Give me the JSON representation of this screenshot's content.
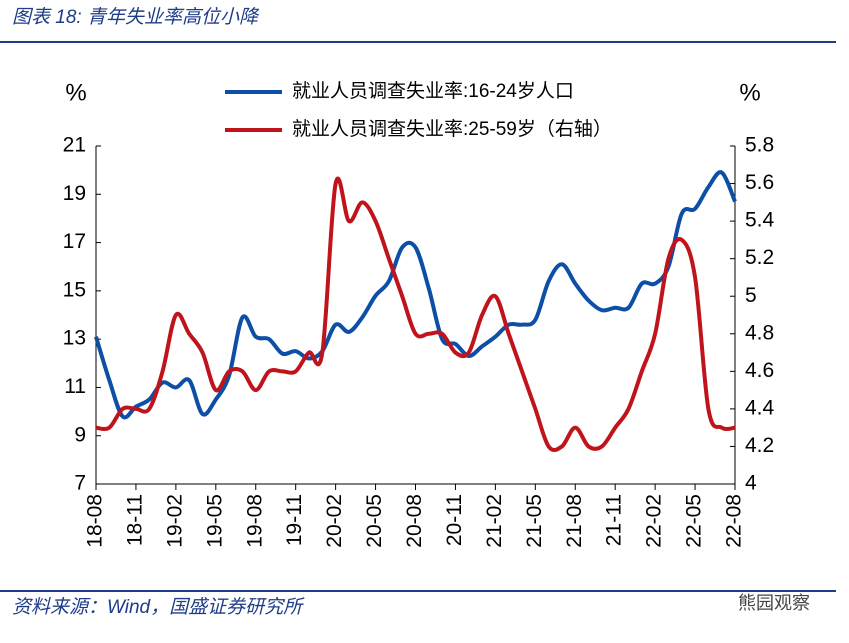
{
  "chart_data": {
    "type": "line",
    "title": "图表 18: 青年失业率高位小降",
    "source": "资料来源：Wind，国盛证券研究所",
    "watermark": "熊园观察",
    "y_label": "%",
    "y2_label": "%",
    "categories": [
      "18-08",
      null,
      null,
      "18-11",
      null,
      null,
      "19-02",
      null,
      null,
      "19-05",
      null,
      null,
      "19-08",
      null,
      null,
      "19-11",
      null,
      null,
      "20-02",
      null,
      null,
      "20-05",
      null,
      null,
      "20-08",
      null,
      null,
      "20-11",
      null,
      null,
      "21-02",
      null,
      null,
      "21-05",
      null,
      null,
      "21-08",
      null,
      null,
      "21-11",
      null,
      null,
      "22-02",
      null,
      null,
      "22-05",
      null,
      null,
      "22-08"
    ],
    "series": [
      {
        "name": "就业人员调查失业率:16-24岁人口",
        "color": "#0d4ea6",
        "axis": "y",
        "values": [
          13.1,
          11.3,
          9.8,
          10.2,
          10.5,
          11.2,
          11.0,
          11.3,
          9.9,
          10.5,
          11.5,
          13.9,
          13.1,
          13.0,
          12.4,
          12.5,
          12.2,
          12.5,
          13.6,
          13.3,
          13.9,
          14.8,
          15.4,
          16.8,
          16.8,
          15.1,
          13.0,
          12.8,
          12.3,
          12.7,
          13.1,
          13.6,
          13.6,
          13.8,
          15.4,
          16.1,
          15.3,
          14.6,
          14.2,
          14.3,
          14.3,
          15.3,
          15.3,
          16.0,
          18.2,
          18.4,
          19.3,
          19.9,
          18.7
        ]
      },
      {
        "name": "就业人员调查失业率:25-59岁（右轴）",
        "color": "#c0141c",
        "axis": "y2",
        "values": [
          4.3,
          4.3,
          4.4,
          4.4,
          4.4,
          4.6,
          4.9,
          4.8,
          4.7,
          4.5,
          4.6,
          4.6,
          4.5,
          4.6,
          4.6,
          4.6,
          4.7,
          4.7,
          5.6,
          5.4,
          5.5,
          5.4,
          5.2,
          5.0,
          4.8,
          4.8,
          4.8,
          4.7,
          4.7,
          4.9,
          5.0,
          4.8,
          4.6,
          4.4,
          4.2,
          4.2,
          4.3,
          4.2,
          4.2,
          4.3,
          4.4,
          4.6,
          4.8,
          5.2,
          5.3,
          5.1,
          4.4,
          4.3,
          4.3
        ]
      }
    ],
    "ylim": [
      7,
      21
    ],
    "yticks": [
      7,
      9,
      11,
      13,
      15,
      17,
      19,
      21
    ],
    "y2lim": [
      4,
      5.8
    ],
    "y2ticks": [
      4,
      4.2,
      4.4,
      4.6,
      4.8,
      5,
      5.2,
      5.4,
      5.6,
      5.8
    ],
    "grid": false
  }
}
